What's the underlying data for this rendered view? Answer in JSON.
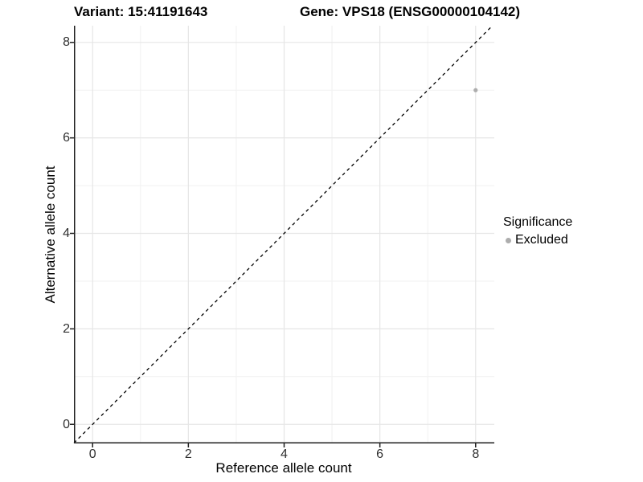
{
  "chart_data": {
    "type": "scatter",
    "title_left": "Variant: 15:41191643",
    "title_right": "Gene: VPS18 (ENSG00000104142)",
    "xlabel": "Reference allele count",
    "ylabel": "Alternative allele count",
    "x_ticks": [
      0,
      2,
      4,
      6,
      8
    ],
    "y_ticks": [
      0,
      2,
      4,
      6,
      8
    ],
    "x_minor_ticks": [
      1,
      3,
      5,
      7
    ],
    "y_minor_ticks": [
      1,
      3,
      5,
      7
    ],
    "xlim": [
      -0.39,
      8.39
    ],
    "ylim": [
      -0.4,
      8.35
    ],
    "grid": "major+minor",
    "series": [
      {
        "name": "Excluded",
        "points": [
          {
            "x": 8,
            "y": 7
          }
        ]
      }
    ],
    "reference_line": {
      "kind": "identity",
      "slope": 1,
      "intercept": 0,
      "line_style": "dashed"
    },
    "legend": {
      "title": "Significance",
      "position": "right",
      "items": [
        {
          "label": "Excluded",
          "color": "#adadad"
        }
      ]
    },
    "colors": {
      "point": "#adadad",
      "grid_major": "#e6e6e6",
      "grid_minor": "#f1f1f1",
      "axis": "#1f1f1f",
      "tick_label": "#303030",
      "reference_line": "#000000",
      "background": "#ffffff"
    }
  }
}
